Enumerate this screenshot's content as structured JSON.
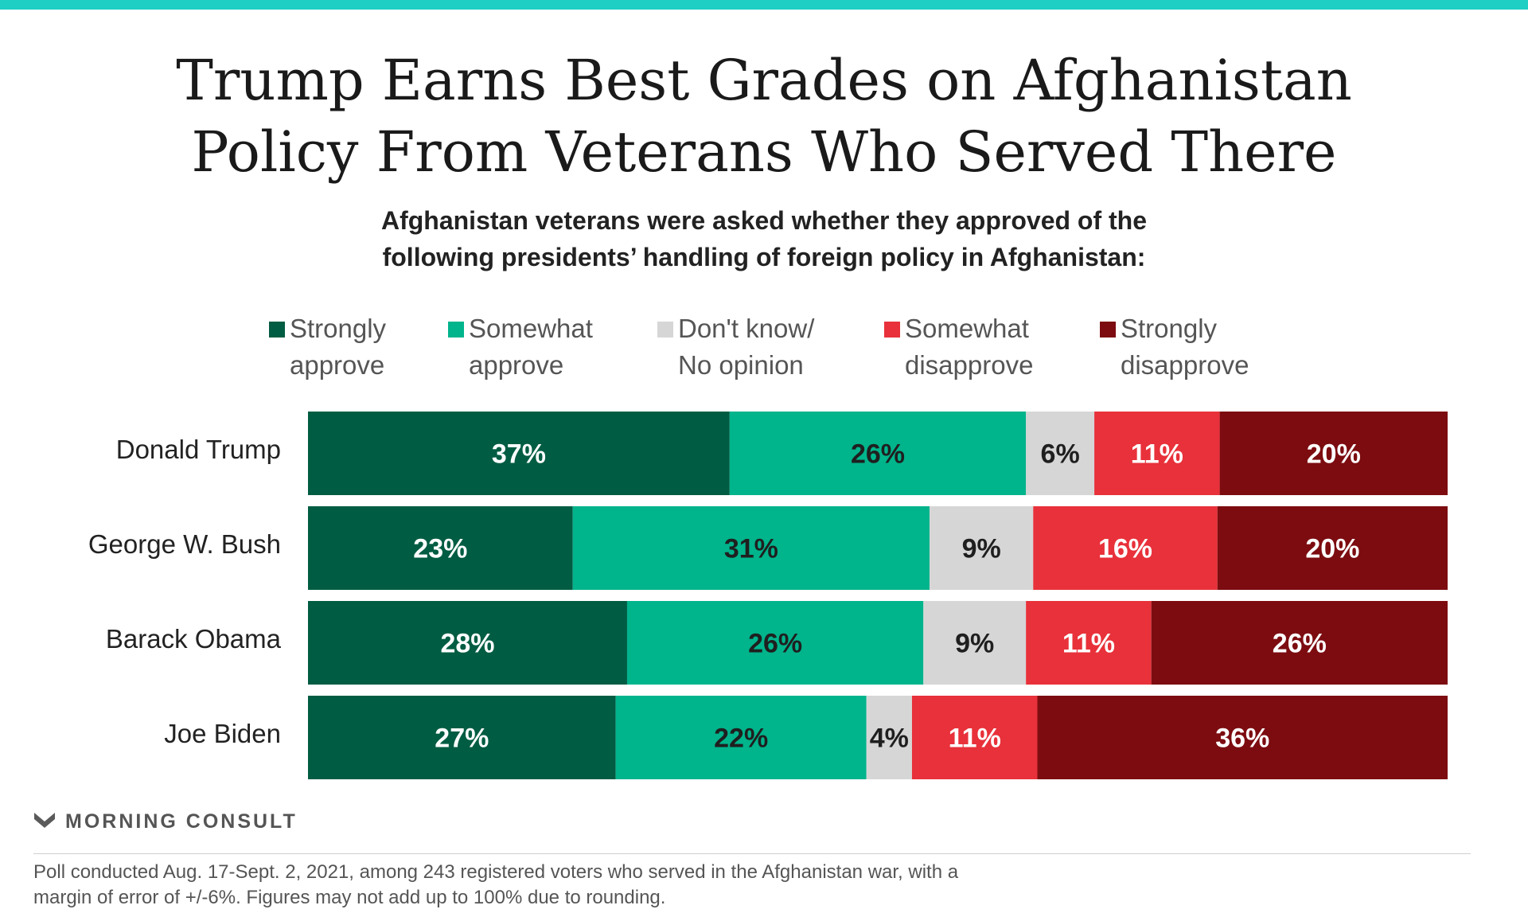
{
  "title_lines": [
    "Trump Earns Best Grades on Afghanistan",
    "Policy From Veterans Who Served There"
  ],
  "subtitle_lines": [
    "Afghanistan veterans were asked whether they approved of the",
    "following presidents’ handling of foreign policy in Afghanistan:"
  ],
  "legend": [
    {
      "lines": [
        "Strongly",
        "approve"
      ],
      "color": "#005c42"
    },
    {
      "lines": [
        "Somewhat",
        "approve"
      ],
      "color": "#00b48c"
    },
    {
      "lines": [
        "Don't know/",
        "No opinion"
      ],
      "color": "#d6d6d6"
    },
    {
      "lines": [
        "Somewhat",
        "disapprove"
      ],
      "color": "#e8313a"
    },
    {
      "lines": [
        "Strongly",
        "disapprove"
      ],
      "color": "#7c0c10"
    }
  ],
  "colors": {
    "accent_bar": "#1fcfc4",
    "label_dark": "#1f1f1f",
    "label_light": "#ffffff"
  },
  "chart_data": {
    "type": "bar",
    "orientation": "horizontal",
    "stacked": true,
    "categories": [
      "Donald Trump",
      "George W. Bush",
      "Barack Obama",
      "Joe Biden"
    ],
    "series": [
      {
        "name": "Strongly approve",
        "values": [
          37,
          23,
          28,
          27
        ],
        "labels": [
          "37%",
          "23%",
          "28%",
          "27%"
        ]
      },
      {
        "name": "Somewhat approve",
        "values": [
          26,
          31,
          26,
          22
        ],
        "labels": [
          "26%",
          "31%",
          "26%",
          "22%"
        ]
      },
      {
        "name": "Don't know/No opinion",
        "values": [
          6,
          9,
          9,
          4
        ],
        "labels": [
          "6%",
          "9%",
          "9%",
          "4%"
        ]
      },
      {
        "name": "Somewhat disapprove",
        "values": [
          11,
          16,
          11,
          11
        ],
        "labels": [
          "11%",
          "16%",
          "11%",
          "11%"
        ]
      },
      {
        "name": "Strongly disapprove",
        "values": [
          20,
          20,
          26,
          36
        ],
        "labels": [
          "20%",
          "20%",
          "26%",
          "36%"
        ]
      }
    ],
    "label_colors": [
      "light",
      "dark",
      "dark",
      "light",
      "light"
    ],
    "grid": false,
    "legend_position": "top"
  },
  "brand": "MORNING CONSULT",
  "footnote_lines": [
    "Poll conducted Aug. 17-Sept. 2, 2021, among 243 registered voters who served in the Afghanistan war, with a",
    "margin of error of +/-6%. Figures may not add up to 100% due to rounding."
  ]
}
